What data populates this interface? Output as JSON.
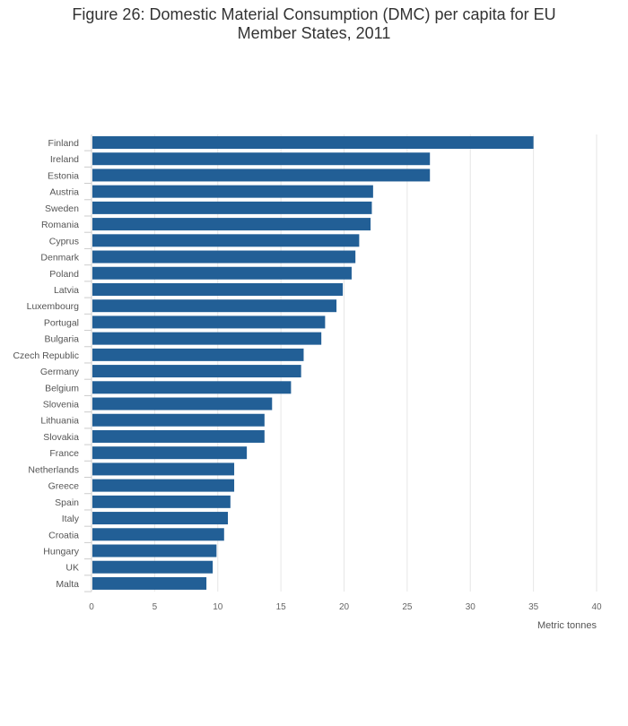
{
  "chart_data": {
    "type": "bar",
    "orientation": "horizontal",
    "title": "Figure 26: Domestic Material Consumption (DMC) per capita for EU Member States, 2011",
    "title_lines": [
      "Figure 26: Domestic Material Consumption (DMC) per capita for EU",
      "Member States, 2011"
    ],
    "xlabel": "Metric tonnes",
    "ylabel": "",
    "xlim": [
      0,
      40
    ],
    "x_ticks": [
      0,
      5,
      10,
      15,
      20,
      25,
      30,
      35,
      40
    ],
    "grid": true,
    "legend": "none",
    "bar_color": "#225f96",
    "categories": [
      "Finland",
      "Ireland",
      "Estonia",
      "Austria",
      "Sweden",
      "Romania",
      "Cyprus",
      "Denmark",
      "Poland",
      "Latvia",
      "Luxembourg",
      "Portugal",
      "Bulgaria",
      "Czech Republic",
      "Germany",
      "Belgium",
      "Slovenia",
      "Lithuania",
      "Slovakia",
      "France",
      "Netherlands",
      "Greece",
      "Spain",
      "Italy",
      "Croatia",
      "Hungary",
      "UK",
      "Malta"
    ],
    "values": [
      35.0,
      26.8,
      26.8,
      22.3,
      22.2,
      22.1,
      21.2,
      20.9,
      20.6,
      19.9,
      19.4,
      18.5,
      18.2,
      16.8,
      16.6,
      15.8,
      14.3,
      13.7,
      13.7,
      12.3,
      11.3,
      11.3,
      11.0,
      10.8,
      10.5,
      9.9,
      9.6,
      9.1
    ]
  }
}
